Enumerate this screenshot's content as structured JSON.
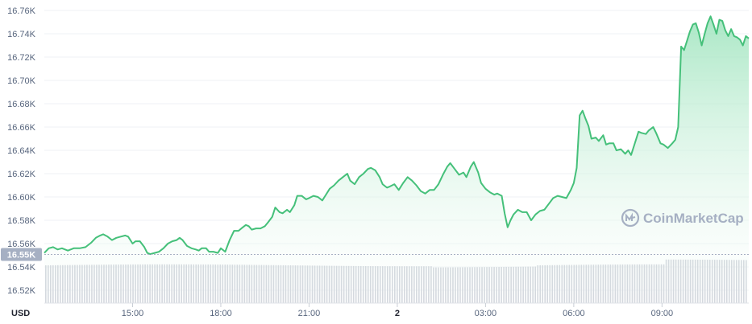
{
  "watermark": "CoinMarketCap",
  "colors": {
    "line": "#45c07a",
    "fill_top": "#9be3bb",
    "fill_bottom": "#ffffff",
    "volume": "#c9ced6",
    "badge": "#a6b0c3",
    "grid": "#eff2f5"
  },
  "chart_data": {
    "type": "area",
    "title": "",
    "xlabel": "",
    "ylabel": "",
    "currency": "USD",
    "y_ticks": [
      "16.52K",
      "16.54K",
      "16.56K",
      "16.58K",
      "16.60K",
      "16.62K",
      "16.64K",
      "16.66K",
      "16.68K",
      "16.70K",
      "16.72K",
      "16.74K",
      "16.76K"
    ],
    "y_tick_values": [
      16520,
      16540,
      16560,
      16580,
      16600,
      16620,
      16640,
      16660,
      16680,
      16700,
      16720,
      16740,
      16760
    ],
    "ylim": [
      16513,
      16771
    ],
    "x_ticks": [
      {
        "label": "15:00",
        "hour": 1.0,
        "bold": false
      },
      {
        "label": "18:00",
        "hour": 4.0,
        "bold": false
      },
      {
        "label": "21:00",
        "hour": 7.0,
        "bold": false
      },
      {
        "label": "2",
        "hour": 10.0,
        "bold": true
      },
      {
        "label": "03:00",
        "hour": 13.0,
        "bold": false
      },
      {
        "label": "06:00",
        "hour": 16.0,
        "bold": false
      },
      {
        "label": "09:00",
        "hour": 19.0,
        "bold": false
      }
    ],
    "xlim": [
      -2.0,
      21.95
    ],
    "current_price_label": "16.55K",
    "current_price": 16550,
    "grid": true,
    "series": [
      {
        "values": [
          [
            -2.0,
            16552
          ],
          [
            -1.85,
            16556
          ],
          [
            -1.7,
            16557
          ],
          [
            -1.55,
            16555
          ],
          [
            -1.4,
            16556
          ],
          [
            -1.2,
            16554
          ],
          [
            -1.0,
            16556
          ],
          [
            -0.8,
            16556
          ],
          [
            -0.6,
            16557
          ],
          [
            -0.4,
            16561
          ],
          [
            -0.25,
            16565
          ],
          [
            -0.1,
            16567
          ],
          [
            0.0,
            16568
          ],
          [
            0.15,
            16566
          ],
          [
            0.3,
            16563
          ],
          [
            0.45,
            16565
          ],
          [
            0.6,
            16566
          ],
          [
            0.75,
            16567
          ],
          [
            0.85,
            16566
          ],
          [
            1.0,
            16560
          ],
          [
            1.1,
            16562
          ],
          [
            1.25,
            16562
          ],
          [
            1.4,
            16557
          ],
          [
            1.5,
            16552
          ],
          [
            1.6,
            16551
          ],
          [
            1.75,
            16552
          ],
          [
            1.9,
            16553
          ],
          [
            2.05,
            16556
          ],
          [
            2.2,
            16560
          ],
          [
            2.35,
            16562
          ],
          [
            2.5,
            16563
          ],
          [
            2.6,
            16565
          ],
          [
            2.7,
            16563
          ],
          [
            2.85,
            16558
          ],
          [
            3.0,
            16556
          ],
          [
            3.15,
            16555
          ],
          [
            3.25,
            16554
          ],
          [
            3.35,
            16556
          ],
          [
            3.5,
            16556
          ],
          [
            3.6,
            16553
          ],
          [
            3.75,
            16553
          ],
          [
            3.9,
            16552
          ],
          [
            4.0,
            16556
          ],
          [
            4.15,
            16553
          ],
          [
            4.3,
            16563
          ],
          [
            4.45,
            16571
          ],
          [
            4.6,
            16571
          ],
          [
            4.7,
            16573
          ],
          [
            4.85,
            16576
          ],
          [
            4.95,
            16575
          ],
          [
            5.05,
            16572
          ],
          [
            5.2,
            16573
          ],
          [
            5.35,
            16573
          ],
          [
            5.5,
            16575
          ],
          [
            5.6,
            16578
          ],
          [
            5.75,
            16583
          ],
          [
            5.85,
            16591
          ],
          [
            6.0,
            16587
          ],
          [
            6.1,
            16586
          ],
          [
            6.25,
            16589
          ],
          [
            6.35,
            16587
          ],
          [
            6.5,
            16593
          ],
          [
            6.6,
            16601
          ],
          [
            6.75,
            16601
          ],
          [
            6.9,
            16598
          ],
          [
            7.0,
            16599
          ],
          [
            7.15,
            16601
          ],
          [
            7.3,
            16600
          ],
          [
            7.45,
            16597
          ],
          [
            7.55,
            16601
          ],
          [
            7.7,
            16607
          ],
          [
            7.85,
            16610
          ],
          [
            8.0,
            16614
          ],
          [
            8.15,
            16617
          ],
          [
            8.3,
            16620
          ],
          [
            8.4,
            16614
          ],
          [
            8.55,
            16611
          ],
          [
            8.7,
            16617
          ],
          [
            8.85,
            16620
          ],
          [
            9.0,
            16624
          ],
          [
            9.1,
            16625
          ],
          [
            9.25,
            16623
          ],
          [
            9.4,
            16617
          ],
          [
            9.5,
            16611
          ],
          [
            9.65,
            16608
          ],
          [
            9.75,
            16609
          ],
          [
            9.9,
            16611
          ],
          [
            10.05,
            16606
          ],
          [
            10.2,
            16612
          ],
          [
            10.35,
            16617
          ],
          [
            10.5,
            16614
          ],
          [
            10.65,
            16610
          ],
          [
            10.8,
            16605
          ],
          [
            10.95,
            16603
          ],
          [
            11.1,
            16606
          ],
          [
            11.25,
            16606
          ],
          [
            11.4,
            16611
          ],
          [
            11.55,
            16619
          ],
          [
            11.7,
            16626
          ],
          [
            11.8,
            16629
          ],
          [
            11.95,
            16624
          ],
          [
            12.1,
            16619
          ],
          [
            12.25,
            16621
          ],
          [
            12.35,
            16617
          ],
          [
            12.5,
            16626
          ],
          [
            12.6,
            16630
          ],
          [
            12.75,
            16621
          ],
          [
            12.85,
            16612
          ],
          [
            13.0,
            16607
          ],
          [
            13.15,
            16604
          ],
          [
            13.3,
            16602
          ],
          [
            13.4,
            16603
          ],
          [
            13.55,
            16601
          ],
          [
            13.65,
            16586
          ],
          [
            13.75,
            16574
          ],
          [
            13.85,
            16580
          ],
          [
            13.95,
            16585
          ],
          [
            14.1,
            16589
          ],
          [
            14.25,
            16587
          ],
          [
            14.4,
            16587
          ],
          [
            14.55,
            16580
          ],
          [
            14.7,
            16585
          ],
          [
            14.85,
            16588
          ],
          [
            15.0,
            16589
          ],
          [
            15.15,
            16594
          ],
          [
            15.3,
            16599
          ],
          [
            15.45,
            16601
          ],
          [
            15.6,
            16600
          ],
          [
            15.75,
            16599
          ],
          [
            15.9,
            16606
          ],
          [
            16.0,
            16612
          ],
          [
            16.1,
            16625
          ],
          [
            16.2,
            16670
          ],
          [
            16.3,
            16674
          ],
          [
            16.4,
            16667
          ],
          [
            16.5,
            16661
          ],
          [
            16.6,
            16650
          ],
          [
            16.75,
            16651
          ],
          [
            16.85,
            16648
          ],
          [
            17.0,
            16653
          ],
          [
            17.1,
            16645
          ],
          [
            17.2,
            16646
          ],
          [
            17.35,
            16646
          ],
          [
            17.45,
            16640
          ],
          [
            17.6,
            16641
          ],
          [
            17.75,
            16637
          ],
          [
            17.85,
            16640
          ],
          [
            17.95,
            16636
          ],
          [
            18.05,
            16644
          ],
          [
            18.2,
            16656
          ],
          [
            18.3,
            16655
          ],
          [
            18.45,
            16654
          ],
          [
            18.55,
            16657
          ],
          [
            18.7,
            16660
          ],
          [
            18.8,
            16655
          ],
          [
            18.95,
            16646
          ],
          [
            19.05,
            16645
          ],
          [
            19.2,
            16642
          ],
          [
            19.35,
            16646
          ],
          [
            19.45,
            16649
          ],
          [
            19.55,
            16660
          ],
          [
            19.65,
            16729
          ],
          [
            19.75,
            16726
          ],
          [
            19.85,
            16734
          ],
          [
            19.95,
            16742
          ],
          [
            20.05,
            16748
          ],
          [
            20.15,
            16749
          ],
          [
            20.25,
            16741
          ],
          [
            20.35,
            16730
          ],
          [
            20.45,
            16740
          ],
          [
            20.55,
            16749
          ],
          [
            20.65,
            16755
          ],
          [
            20.75,
            16748
          ],
          [
            20.85,
            16740
          ],
          [
            20.95,
            16752
          ],
          [
            21.05,
            16751
          ],
          [
            21.15,
            16743
          ],
          [
            21.25,
            16738
          ],
          [
            21.35,
            16744
          ],
          [
            21.45,
            16738
          ],
          [
            21.55,
            16737
          ],
          [
            21.65,
            16735
          ],
          [
            21.75,
            16730
          ],
          [
            21.85,
            16738
          ],
          [
            21.95,
            16736
          ]
        ]
      }
    ]
  }
}
